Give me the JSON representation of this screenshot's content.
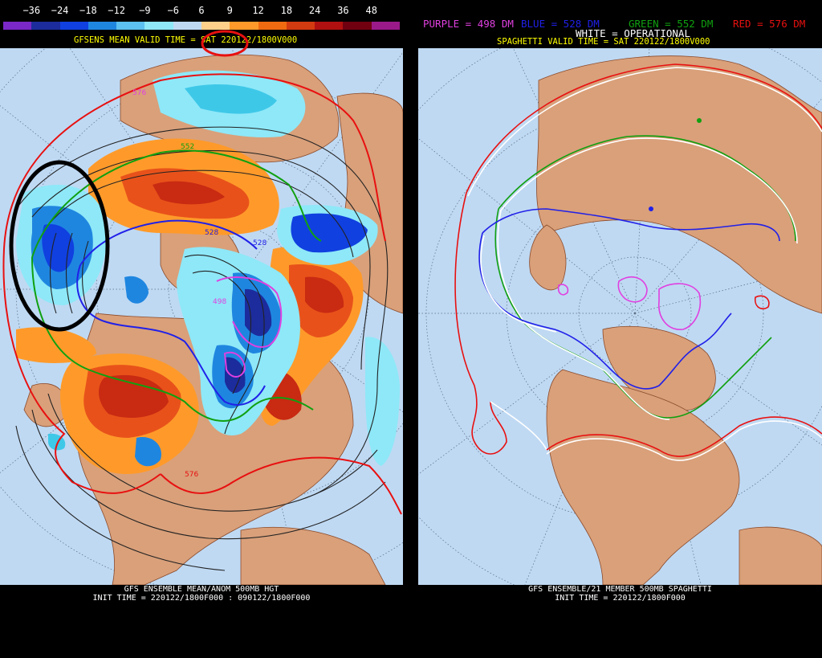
{
  "left": {
    "colorbar": {
      "ticks": [
        "−36",
        "−24",
        "−18",
        "−12",
        "−9",
        "−6",
        "6",
        "9",
        "12",
        "18",
        "24",
        "36",
        "48"
      ],
      "colors": [
        "#7a28c8",
        "#1c2c9c",
        "#1040e0",
        "#1f86e0",
        "#5cc0f0",
        "#8ee8f8",
        "#bfd9f3",
        "#ffd08a",
        "#ff9a2a",
        "#f06a10",
        "#d23a10",
        "#b01010",
        "#700010",
        "#9a1a8a"
      ]
    },
    "header": "GFSENS MEAN VALID TIME = SAT 220122/1800V000",
    "footer_line1": "GFS ENSEMBLE MEAN/ANOM 500MB HGT",
    "footer_line2": "INIT TIME = 220122/1800F000 : 090122/1800F000",
    "contour_labels": [
      "576",
      "552",
      "528",
      "528",
      "498",
      "576"
    ]
  },
  "right": {
    "legend": {
      "purple": "PURPLE = 498 DM",
      "blue": "BLUE = 528 DM",
      "green": "GREEN = 552 DM",
      "red": "RED = 576 DM",
      "white": "WHITE = OPERATIONAL"
    },
    "colors": {
      "purple": "#e040e0",
      "blue": "#2020e8",
      "green": "#10a010",
      "red": "#e81010",
      "white": "#ffffff"
    },
    "header": "SPAGHETTI VALID TIME = SAT 220122/1800V000",
    "footer_line1": "GFS ENSEMBLE/21 MEMBER 500MB SPAGHETTI",
    "footer_line2": "INIT TIME = 220122/1800F000"
  }
}
